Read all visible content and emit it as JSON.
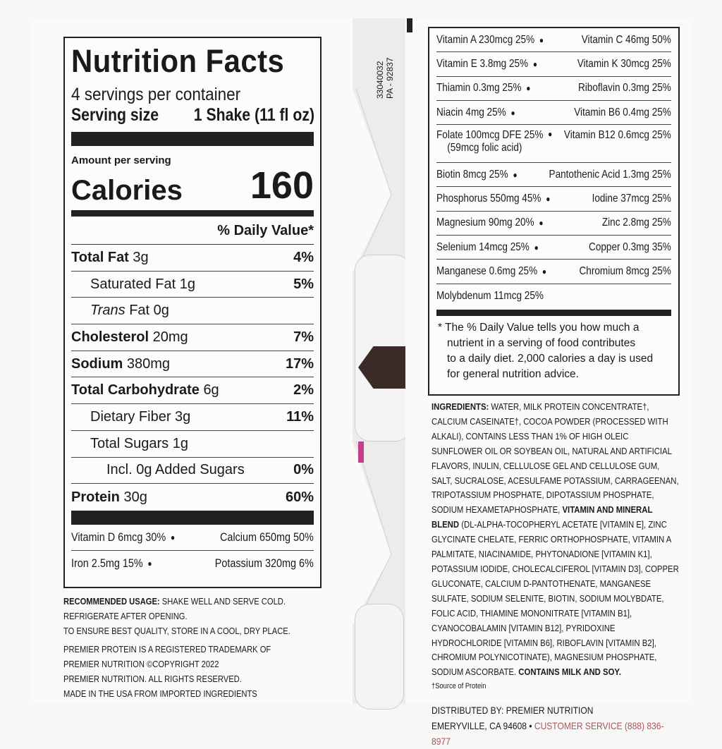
{
  "nutrition_facts": {
    "title": "Nutrition Facts",
    "servings": "4 servings per container",
    "serving_size_label": "Serving size",
    "serving_size_value": "1 Shake (11 fl oz)",
    "amount_per_serving": "Amount per serving",
    "calories_label": "Calories",
    "calories_value": "160",
    "daily_value_header": "% Daily Value*",
    "rows": [
      {
        "name": "Total Fat",
        "amount": "3g",
        "dv": "4%",
        "bold": true,
        "indent": 0
      },
      {
        "name": "Saturated Fat",
        "amount": "1g",
        "dv": "5%",
        "bold": false,
        "indent": 1
      },
      {
        "name": "Trans",
        "amount": "Fat 0g",
        "dv": "",
        "bold": false,
        "indent": 1,
        "italic": true
      },
      {
        "name": "Cholesterol",
        "amount": "20mg",
        "dv": "7%",
        "bold": true,
        "indent": 0
      },
      {
        "name": "Sodium",
        "amount": "380mg",
        "dv": "17%",
        "bold": true,
        "indent": 0
      },
      {
        "name": "Total Carbohydrate",
        "amount": "6g",
        "dv": "2%",
        "bold": true,
        "indent": 0
      },
      {
        "name": "Dietary Fiber",
        "amount": "3g",
        "dv": "11%",
        "bold": false,
        "indent": 1
      },
      {
        "name": "Total Sugars",
        "amount": "1g",
        "dv": "",
        "bold": false,
        "indent": 1
      },
      {
        "name": "Incl. 0g Added Sugars",
        "amount": "",
        "dv": "0%",
        "bold": false,
        "indent": 2
      },
      {
        "name": "Protein",
        "amount": "30g",
        "dv": "60%",
        "bold": true,
        "indent": 0
      }
    ],
    "vitamins": [
      {
        "left": "Vitamin D 6mcg 30%",
        "right": "Calcium 650mg 50%"
      },
      {
        "left": "Iron 2.5mg 15%",
        "right": "Potassium 320mg 6%"
      }
    ]
  },
  "vitamin_panel": {
    "rows": [
      {
        "left": "Vitamin A 230mcg 25%",
        "right": "Vitamin C 46mg 50%"
      },
      {
        "left": "Vitamin E 3.8mg 25%",
        "right": "Vitamin K 30mcg 25%"
      },
      {
        "left": "Thiamin 0.3mg 25%",
        "right": "Riboflavin 0.3mg 25%"
      },
      {
        "left": "Niacin 4mg 25%",
        "right": "Vitamin B6 0.4mg 25%"
      },
      {
        "left": "Folate 100mcg DFE 25%",
        "left_sub": "(59mcg folic acid)",
        "right": "Vitamin B12 0.6mcg 25%"
      },
      {
        "left": "Biotin 8mcg 25%",
        "right": "Pantothenic Acid 1.3mg 25%"
      },
      {
        "left": "Phosphorus 550mg 45%",
        "right": "Iodine 37mcg 25%"
      },
      {
        "left": "Magnesium 90mg 20%",
        "right": "Zinc 2.8mg 25%"
      },
      {
        "left": "Selenium 14mcg 25%",
        "right": "Copper 0.3mg 35%"
      },
      {
        "left": "Manganese 0.6mg 25%",
        "right": "Chromium 8mcg 25%"
      },
      {
        "left": "Molybdenum 11mcg 25%",
        "right": ""
      }
    ],
    "footnote_lines": [
      "* The % Daily Value tells you how much a",
      "nutrient in a serving of food contributes",
      "to a daily diet. 2,000 calories a day is used",
      "for general nutrition advice."
    ]
  },
  "usage": {
    "label": "RECOMMENDED USAGE:",
    "line1": " SHAKE WELL AND SERVE COLD.",
    "line2": "REFRIGERATE AFTER OPENING.",
    "line3": "TO ENSURE BEST QUALITY, STORE IN A COOL, DRY PLACE."
  },
  "legal": {
    "lines": [
      "PREMIER PROTEIN IS A REGISTERED TRADEMARK OF",
      "PREMIER NUTRITION ©COPYRIGHT 2022",
      "PREMIER NUTRITION. ALL RIGHTS RESERVED.",
      "MADE IN THE USA FROM IMPORTED INGREDIENTS"
    ]
  },
  "ingredients": {
    "label": "INGREDIENTS:",
    "text1": " WATER, MILK PROTEIN CONCENTRATE†, CALCIUM CASEINATE†, COCOA POWDER (PROCESSED WITH ALKALI), CONTAINS LESS THAN 1% OF HIGH OLEIC SUNFLOWER OIL OR SOYBEAN OIL, NATURAL AND ARTIFICIAL FLAVORS, INULIN, CELLULOSE GEL AND CELLULOSE GUM, SALT, SUCRALOSE, ACESULFAME POTASSIUM, CARRAGEENAN, TRIPOTASSIUM PHOSPHATE, DIPOTASSIUM PHOSPHATE, SODIUM HEXAMETAPHOSPHATE, ",
    "blend_label": "VITAMIN AND MINERAL BLEND",
    "text2": " (DL-ALPHA-TOCOPHERYL ACETATE [VITAMIN E], ZINC GLYCINATE CHELATE, FERRIC ORTHOPHOSPHATE, VITAMIN A PALMITATE, NIACINAMIDE, PHYTONADIONE [VITAMIN K1], POTASSIUM IODIDE, CHOLECALCIFEROL [VITAMIN D3], COPPER GLUCONATE, CALCIUM D-PANTOTHENATE, MANGANESE SULFATE, SODIUM SELENITE, BIOTIN, SODIUM MOLYBDATE, FOLIC ACID, THIAMINE MONONITRATE [VITAMIN B1], CYANOCOBALAMIN [VITAMIN B12], PYRIDOXINE HYDROCHLORIDE [VITAMIN B6], RIBOFLAVIN [VITAMIN B2], CHROMIUM POLYNICOTINATE), MAGNESIUM PHOSPHATE, SODIUM ASCORBATE. ",
    "allergen": "CONTAINS MILK AND SOY.",
    "source_note": "†Source of Protein"
  },
  "distributor": {
    "line1": "DISTRIBUTED BY: PREMIER NUTRITION",
    "city": "EMERYVILLE, CA 94608 • ",
    "customer_service": "CUSTOMER SERVICE (888) 836-8977"
  },
  "codes": {
    "line1": "33040032",
    "line2": "PA - 92837"
  },
  "colors": {
    "customer_service": "#b0525a",
    "rules": "#222222"
  }
}
